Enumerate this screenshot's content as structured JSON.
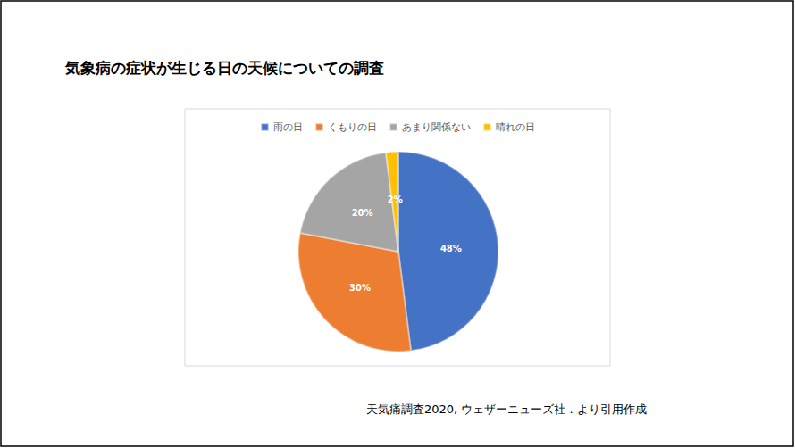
{
  "chart_data": {
    "type": "pie",
    "title": "気象病の症状が生じる日の天候についての調査",
    "categories": [
      "雨の日",
      "くもりの日",
      "あまり関係ない",
      "晴れの日"
    ],
    "values": [
      48,
      30,
      20,
      2
    ],
    "value_labels": [
      "48%",
      "30%",
      "20%",
      "2%"
    ],
    "colors": [
      "#4472c4",
      "#ed7d31",
      "#a5a5a5",
      "#ffc000"
    ],
    "data_labels": true,
    "legend": "top",
    "source": "天気痛調査2020, ウェザーニューズ社 . より引用作成"
  }
}
